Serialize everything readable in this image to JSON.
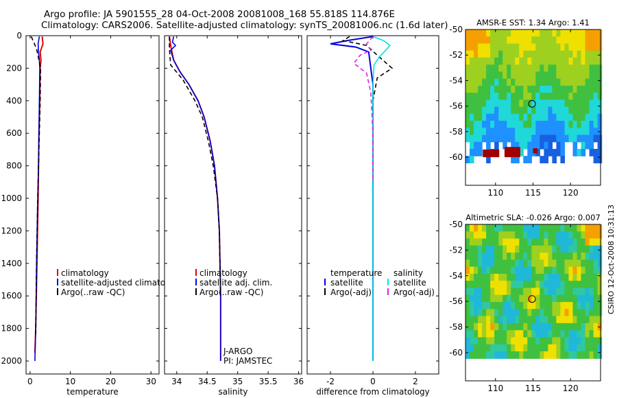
{
  "header": {
    "line1": "Argo profile: JA 5901555_28 04-Oct-2008 20081008_168 55.818S 114.876E",
    "line2": "Climatology: CARS2006. Satellite-adjusted climatology: synTS_20081006.nc (1.6d later)"
  },
  "credit": "CSIRO 12-Oct-2008 10:31:13",
  "colors": {
    "climatology": "#e00000",
    "satellite": "#0000dd",
    "argo": "#000000",
    "salinity_satellite": "#00e5e5",
    "salinity_argo": "#e020e0"
  },
  "chart_data": [
    {
      "type": "line",
      "id": "temperature",
      "xlabel": "temperature",
      "ylabel": "",
      "xlim": [
        -1,
        32
      ],
      "ylim": [
        2080,
        0
      ],
      "xticks": [
        0,
        10,
        20,
        30
      ],
      "yticks": [
        0,
        200,
        400,
        600,
        800,
        1000,
        1200,
        1400,
        1600,
        1800,
        2000
      ],
      "legend": [
        "climatology",
        "satellite-adjusted climatology",
        "Argo(..raw -QC)"
      ],
      "series": [
        {
          "name": "climatology",
          "color": "#e00000",
          "dash": "",
          "x": [
            3.0,
            3.2,
            2.5,
            2.7,
            2.5,
            2.4,
            2.2,
            2.1,
            2.0,
            1.7,
            1.4,
            1.2
          ],
          "y": [
            5,
            50,
            100,
            150,
            200,
            400,
            600,
            800,
            1000,
            1400,
            1800,
            1950
          ]
        },
        {
          "name": "satellite-adjusted climatology",
          "color": "#0000dd",
          "dash": "",
          "x": [
            2.3,
            2.0,
            2.1,
            2.3,
            2.4,
            2.3,
            2.2,
            2.1,
            1.9,
            1.6,
            1.4,
            1.2
          ],
          "y": [
            5,
            50,
            100,
            150,
            200,
            400,
            600,
            800,
            1000,
            1400,
            1800,
            2000
          ]
        },
        {
          "name": "Argo(..raw -QC)",
          "color": "#000000",
          "dash": "6,4",
          "x": [
            0.3,
            0.9,
            1.6,
            2.2,
            2.6,
            2.5,
            2.3,
            2.1,
            1.9,
            1.6,
            1.4
          ],
          "y": [
            5,
            40,
            80,
            150,
            200,
            400,
            600,
            800,
            1000,
            1400,
            1850
          ]
        }
      ]
    },
    {
      "type": "line",
      "id": "salinity",
      "xlabel": "salinity",
      "ylabel": "",
      "xlim": [
        33.8,
        36.05
      ],
      "ylim": [
        2080,
        0
      ],
      "xticks": [
        34,
        34.5,
        35,
        35.5,
        36
      ],
      "yticks": [
        0,
        200,
        400,
        600,
        800,
        1000,
        1200,
        1400,
        1600,
        1800,
        2000
      ],
      "legend": [
        "climatology",
        "satellite adj. clim.",
        "Argo(..raw -QC)"
      ],
      "annotation": [
        "J-ARGO",
        "PI: JAMSTEC"
      ],
      "series": [
        {
          "name": "climatology",
          "color": "#e00000",
          "dash": "",
          "x": [
            33.88,
            33.9,
            33.95,
            34.05,
            34.2,
            34.35,
            34.45,
            34.55,
            34.62,
            34.67,
            34.7,
            34.72,
            34.72
          ],
          "y": [
            5,
            60,
            150,
            220,
            300,
            400,
            500,
            650,
            800,
            1000,
            1200,
            1600,
            2000
          ]
        },
        {
          "name": "satellite adj. clim.",
          "color": "#0000dd",
          "dash": "",
          "x": [
            33.95,
            33.93,
            33.98,
            33.9,
            33.95,
            34.05,
            34.2,
            34.35,
            34.45,
            34.55,
            34.62,
            34.67,
            34.7,
            34.72,
            34.72
          ],
          "y": [
            5,
            40,
            60,
            90,
            150,
            220,
            300,
            400,
            500,
            650,
            800,
            1000,
            1200,
            1600,
            2000
          ]
        },
        {
          "name": "Argo(..raw -QC)",
          "color": "#000000",
          "dash": "6,4",
          "x": [
            33.88,
            33.88,
            33.9,
            34.1,
            34.3,
            34.42,
            34.52,
            34.6,
            34.67,
            34.7,
            34.72
          ],
          "y": [
            5,
            80,
            180,
            270,
            400,
            500,
            650,
            800,
            1000,
            1200,
            1600
          ]
        }
      ]
    },
    {
      "type": "line",
      "id": "difference",
      "xlabel": "difference from climatology",
      "ylabel": "",
      "xlim": [
        -3.1,
        3.1
      ],
      "ylim": [
        2080,
        0
      ],
      "xticks": [
        -2,
        0,
        2
      ],
      "yticks": [
        0,
        200,
        400,
        600,
        800,
        1000,
        1200,
        1400,
        1600,
        1800,
        2000
      ],
      "legend_groups": [
        {
          "title": "temperature",
          "items": [
            "satellite",
            "Argo(-adj)"
          ]
        },
        {
          "title": "salinity",
          "items": [
            "satellite",
            "Argo(-adj)"
          ]
        }
      ],
      "series": [
        {
          "name": "temperature satellite",
          "color": "#0000dd",
          "dash": "",
          "x": [
            0.0,
            -1.2,
            -2.0,
            -0.8,
            -0.2,
            0.0,
            0.0,
            0.0,
            0.0,
            0.0
          ],
          "y": [
            5,
            30,
            50,
            70,
            100,
            300,
            800,
            1200,
            1600,
            2000
          ]
        },
        {
          "name": "temperature Argo(-adj)",
          "color": "#000000",
          "dash": "6,4",
          "x": [
            -1.1,
            -1.4,
            -0.3,
            0.2,
            0.9,
            0.2,
            0.0,
            0.0,
            0.0
          ],
          "y": [
            5,
            30,
            60,
            120,
            200,
            260,
            400,
            800,
            1300
          ]
        },
        {
          "name": "salinity satellite",
          "color": "#00e5e5",
          "dash": "",
          "x": [
            0.0,
            0.5,
            0.8,
            0.6,
            0.3,
            0.05,
            0.0,
            0.0,
            0.0
          ],
          "y": [
            5,
            30,
            60,
            90,
            130,
            180,
            300,
            1000,
            2000
          ]
        },
        {
          "name": "salinity Argo(-adj)",
          "color": "#e020e0",
          "dash": "6,4",
          "x": [
            0.0,
            -0.3,
            -0.1,
            -0.6,
            -0.9,
            -0.3,
            -0.1,
            0.0,
            0.0
          ],
          "y": [
            5,
            50,
            90,
            120,
            170,
            230,
            350,
            600,
            900
          ]
        }
      ]
    },
    {
      "type": "heatmap",
      "id": "sst-map",
      "title": "AMSR-E SST: 1.34 Argo: 1.41",
      "xlim": [
        106,
        124
      ],
      "ylim": [
        -62.2,
        -50
      ],
      "xticks": [
        110,
        115,
        120
      ],
      "yticks": [
        -50,
        -52,
        -54,
        -56,
        -58,
        -60
      ],
      "marker": [
        114.876,
        -55.818
      ]
    },
    {
      "type": "heatmap",
      "id": "sla-map",
      "title": "Altimetric SLA: -0.026 Argo: 0.007",
      "xlim": [
        106,
        124
      ],
      "ylim": [
        -62.2,
        -50
      ],
      "xticks": [
        110,
        115,
        120
      ],
      "yticks": [
        -50,
        -52,
        -54,
        -56,
        -58,
        -60
      ],
      "marker": [
        114.876,
        -55.818
      ]
    }
  ]
}
